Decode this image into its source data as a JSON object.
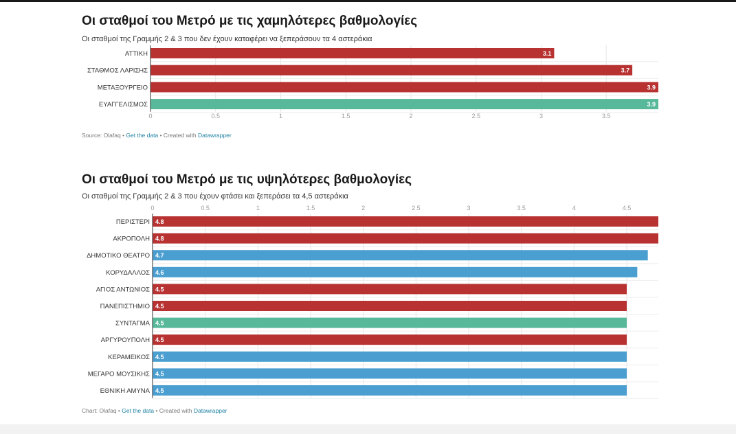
{
  "charts": [
    {
      "title": "Οι σταθμοί του Μετρό με τις χαμηλότερες βαθμολογίες",
      "subtitle": "Οι σταθμοί της Γραμμής 2 & 3 που δεν έχουν καταφέρει να ξεπεράσουν τα 4 αστεράκια",
      "footer": {
        "source": "Source: Olafaq",
        "sep1": " • ",
        "get_data": "Get the data",
        "sep2": " • Created with ",
        "tool": "Datawrapper"
      }
    },
    {
      "title": "Οι σταθμοί του Μετρό με τις υψηλότερες βαθμολογίες",
      "subtitle": "Οι σταθμοί της Γραμμής 2 & 3 που έχουν φτάσει και ξεπεράσει τα 4,5 αστεράκια",
      "footer": {
        "source": "Chart: Olafaq",
        "sep1": " • ",
        "get_data": "Get the data",
        "sep2": " • Created with ",
        "tool": "Datawrapper"
      }
    }
  ],
  "colors": {
    "red": "#b83232",
    "green": "#58b89a",
    "blue": "#4a9ed0"
  },
  "chart_data": [
    {
      "type": "bar",
      "orientation": "horizontal",
      "title": "Οι σταθμοί του Μετρό με τις χαμηλότερες βαθμολογίες",
      "axis_position": "bottom",
      "xlim": [
        0,
        3.9
      ],
      "ticks": [
        0,
        0.5,
        1,
        1.5,
        2,
        2.5,
        3,
        3.5
      ],
      "tick_labels": [
        "0",
        "0.5",
        "1",
        "1.5",
        "2",
        "2.5",
        "3",
        "3.5"
      ],
      "grid": true,
      "categories": [
        "ΑΤΤΙΚΗ",
        "ΣΤΑΘΜΟΣ ΛΑΡΙΣΗΣ",
        "ΜΕΤΑΞΟΥΡΓΕΙΟ",
        "ΕΥΑΓΓΕΛΙΣΜΟΣ"
      ],
      "values": [
        3.1,
        3.7,
        3.9,
        3.9
      ],
      "value_labels": [
        "3.1",
        "3.7",
        "3.9",
        "3.9"
      ],
      "colors": [
        "#b83232",
        "#b83232",
        "#b83232",
        "#58b89a"
      ],
      "value_label_position": "inside-end"
    },
    {
      "type": "bar",
      "orientation": "horizontal",
      "title": "Οι σταθμοί του Μετρό με τις υψηλότερες βαθμολογίες",
      "axis_position": "top",
      "xlim": [
        0,
        4.8
      ],
      "ticks": [
        0,
        0.5,
        1,
        1.5,
        2,
        2.5,
        3,
        3.5,
        4,
        4.5
      ],
      "tick_labels": [
        "0",
        "0.5",
        "1",
        "1.5",
        "2",
        "2.5",
        "3",
        "3.5",
        "4",
        "4.5"
      ],
      "grid": true,
      "categories": [
        "ΠΕΡΙΣΤΕΡΙ",
        "ΑΚΡΟΠΟΛΗ",
        "ΔΗΜΟΤΙΚΟ ΘΕΑΤΡΟ",
        "ΚΟΡΥΔΑΛΛΟΣ",
        "ΑΓΙΟΣ ΑΝΤΩΝΙΟΣ",
        "ΠΑΝΕΠΙΣΤΗΜΙΟ",
        "ΣΥΝΤΑΓΜΑ",
        "ΑΡΓΥΡΟΥΠΟΛΗ",
        "ΚΕΡΑΜΕΙΚΟΣ",
        "ΜΕΓΑΡΟ ΜΟΥΣΙΚΗΣ",
        "ΕΘΝΙΚΗ ΑΜΥΝΑ"
      ],
      "values": [
        4.8,
        4.8,
        4.7,
        4.6,
        4.5,
        4.5,
        4.5,
        4.5,
        4.5,
        4.5,
        4.5
      ],
      "value_labels": [
        "4.8",
        "4.8",
        "4.7",
        "4.6",
        "4.5",
        "4.5",
        "4.5",
        "4.5",
        "4.5",
        "4.5",
        "4.5"
      ],
      "colors": [
        "#b83232",
        "#b83232",
        "#4a9ed0",
        "#4a9ed0",
        "#b83232",
        "#b83232",
        "#58b89a",
        "#b83232",
        "#4a9ed0",
        "#4a9ed0",
        "#4a9ed0"
      ],
      "value_label_position": "inside-start"
    }
  ]
}
